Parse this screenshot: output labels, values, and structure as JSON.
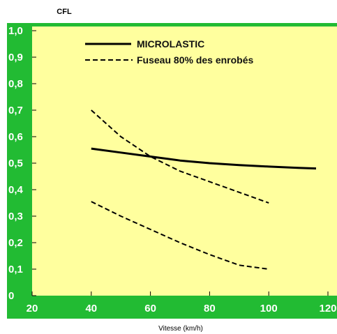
{
  "chart_data": {
    "type": "line",
    "title": "CFL",
    "xlabel": "Vitesse (km/h)",
    "ylabel": "",
    "xlim": [
      20,
      120
    ],
    "ylim": [
      0,
      1.0
    ],
    "x_ticks": [
      "20",
      "40",
      "60",
      "80",
      "100",
      "120"
    ],
    "y_ticks": [
      "0",
      "0,1",
      "0,2",
      "0,3",
      "0,4",
      "0,5",
      "0,6",
      "0,7",
      "0,8",
      "0,9",
      "1,0"
    ],
    "legend_position": "top-left",
    "grid": false,
    "series": [
      {
        "name": "MICROLASTIC",
        "style": "solid",
        "x": [
          40,
          50,
          60,
          70,
          80,
          90,
          100,
          110,
          116
        ],
        "y": [
          0.555,
          0.54,
          0.525,
          0.51,
          0.5,
          0.493,
          0.487,
          0.482,
          0.48
        ]
      },
      {
        "name": "Fuseau 80% des enrobés",
        "style": "dashed",
        "x": [
          40,
          50,
          60,
          70,
          80,
          90,
          100
        ],
        "y": [
          0.7,
          0.6,
          0.525,
          0.47,
          0.43,
          0.39,
          0.35
        ]
      },
      {
        "name": "",
        "style": "dashed",
        "x": [
          40,
          50,
          60,
          70,
          80,
          90,
          100
        ],
        "y": [
          0.355,
          0.3,
          0.25,
          0.2,
          0.155,
          0.115,
          0.1
        ]
      }
    ],
    "colors": {
      "frame": "#22bb33",
      "plot_bg": "#ffff9e",
      "line": "#000000"
    }
  }
}
